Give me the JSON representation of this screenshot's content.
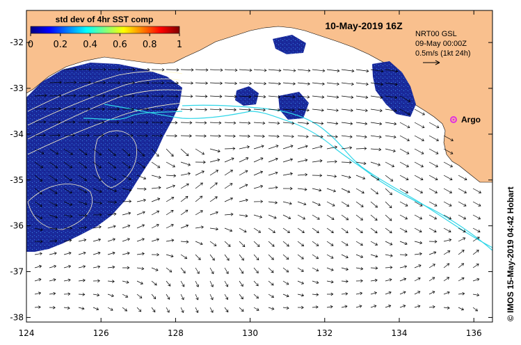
{
  "map": {
    "title": "10-May-2019 16Z",
    "info_lines": [
      "NRT00 GSL",
      "09-May 00:00Z",
      "0.5m/s (1kt 24h)"
    ],
    "credit": "© IMOS 15-May-2019 04:42 Hobart",
    "argo_label": "Argo",
    "colors": {
      "land": "#f9c08e",
      "sst_low": "#1a2a9c",
      "drifter": "#2fd6e8",
      "argo": "#e030e0",
      "contour": "#fff6c8"
    }
  },
  "colorbar": {
    "title": "std dev of 4hr SST comp",
    "ticks": [
      "0",
      "0.2",
      "0.4",
      "0.6",
      "0.8",
      "1"
    ],
    "range": [
      0,
      1
    ],
    "colors": [
      "#00007f",
      "#0000ff",
      "#007fff",
      "#00ffff",
      "#7fff7f",
      "#ffff00",
      "#ff7f00",
      "#ff0000",
      "#7f0000"
    ]
  },
  "axes": {
    "x_ticks": [
      "124",
      "126",
      "128",
      "130",
      "132",
      "134",
      "136"
    ],
    "x_values": [
      124,
      126,
      128,
      130,
      132,
      134,
      136
    ],
    "y_ticks": [
      "-32",
      "-33",
      "-34",
      "-35",
      "-36",
      "-37",
      "-38"
    ],
    "y_values": [
      -32,
      -33,
      -34,
      -35,
      -36,
      -37,
      -38
    ],
    "lon_range": [
      124,
      136.5
    ],
    "lat_range": [
      -31.3,
      -38.1
    ]
  }
}
